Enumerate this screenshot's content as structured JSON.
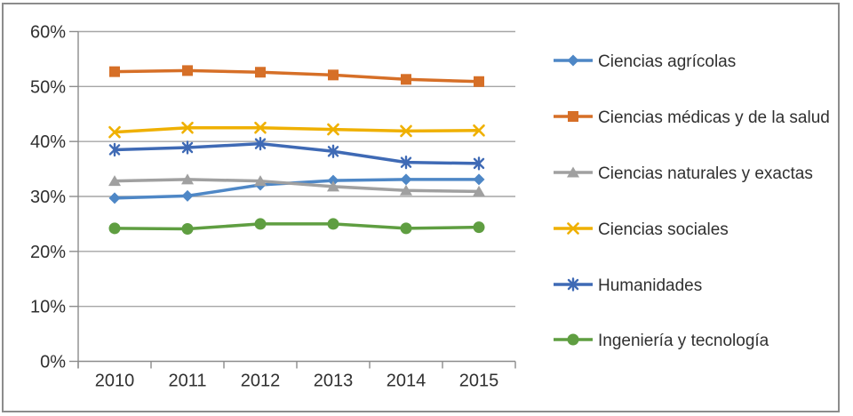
{
  "chart_data": {
    "type": "line",
    "title": "",
    "xlabel": "",
    "ylabel": "",
    "x": [
      "2010",
      "2011",
      "2012",
      "2013",
      "2014",
      "2015"
    ],
    "series": [
      {
        "name": "Ciencias agrícolas",
        "color": "#4E87C6",
        "marker": "diamond",
        "values": [
          29.7,
          30.1,
          32.1,
          32.9,
          33.1,
          33.1
        ]
      },
      {
        "name": "Ciencias médicas y de la salud",
        "color": "#D66F27",
        "marker": "square",
        "values": [
          52.7,
          52.9,
          52.6,
          52.1,
          51.3,
          50.9
        ]
      },
      {
        "name": "Ciencias naturales y exactas",
        "color": "#A0A0A0",
        "marker": "triangle",
        "values": [
          32.8,
          33.1,
          32.8,
          31.8,
          31.1,
          30.9
        ]
      },
      {
        "name": "Ciencias sociales",
        "color": "#EFB000",
        "marker": "x",
        "values": [
          41.7,
          42.5,
          42.5,
          42.2,
          41.9,
          42.0
        ]
      },
      {
        "name": "Humanidades",
        "color": "#3F6AB5",
        "marker": "asterisk",
        "values": [
          38.5,
          38.9,
          39.6,
          38.2,
          36.2,
          36.0
        ]
      },
      {
        "name": "Ingeniería y tecnología",
        "color": "#5F9E41",
        "marker": "circle",
        "values": [
          24.2,
          24.1,
          25.0,
          25.0,
          24.2,
          24.4
        ]
      }
    ],
    "ylim": [
      0,
      60
    ],
    "ytick_step": 10,
    "ytick_labels": [
      "0%",
      "10%",
      "20%",
      "30%",
      "40%",
      "50%",
      "60%"
    ],
    "grid": true,
    "legend_position": "right"
  },
  "style": {
    "gridline_color": "#A6A6A6",
    "axis_color": "#8C8C8C",
    "text_color": "#303030",
    "border_color": "#8C8C8C",
    "background": "#FFFFFF"
  }
}
